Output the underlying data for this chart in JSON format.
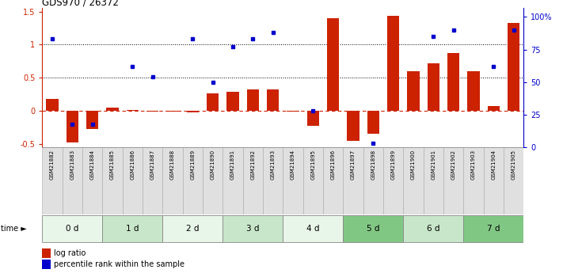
{
  "title": "GDS970 / 26372",
  "samples": [
    "GSM21882",
    "GSM21883",
    "GSM21884",
    "GSM21885",
    "GSM21886",
    "GSM21887",
    "GSM21888",
    "GSM21889",
    "GSM21890",
    "GSM21891",
    "GSM21892",
    "GSM21893",
    "GSM21894",
    "GSM21895",
    "GSM21896",
    "GSM21897",
    "GSM21898",
    "GSM21899",
    "GSM21900",
    "GSM21901",
    "GSM21902",
    "GSM21903",
    "GSM21904",
    "GSM21905"
  ],
  "log_ratio": [
    0.18,
    -0.48,
    -0.27,
    0.05,
    0.02,
    -0.01,
    -0.01,
    -0.02,
    0.26,
    0.29,
    0.32,
    0.32,
    -0.01,
    -0.22,
    1.4,
    -0.45,
    -0.34,
    1.44,
    0.6,
    0.72,
    0.87,
    0.6,
    0.08,
    1.33
  ],
  "percentile_rank": [
    83,
    18,
    18,
    null,
    62,
    54,
    null,
    83,
    50,
    77,
    83,
    88,
    null,
    28,
    null,
    null,
    3,
    null,
    null,
    85,
    90,
    null,
    62,
    90
  ],
  "time_groups": [
    {
      "label": "0 d",
      "start": 0,
      "end": 3,
      "color": "#e8f5e9"
    },
    {
      "label": "1 d",
      "start": 3,
      "end": 6,
      "color": "#c8e6c9"
    },
    {
      "label": "2 d",
      "start": 6,
      "end": 9,
      "color": "#e8f5e9"
    },
    {
      "label": "3 d",
      "start": 9,
      "end": 12,
      "color": "#c8e6c9"
    },
    {
      "label": "4 d",
      "start": 12,
      "end": 15,
      "color": "#e8f5e9"
    },
    {
      "label": "5 d",
      "start": 15,
      "end": 18,
      "color": "#81c784"
    },
    {
      "label": "6 d",
      "start": 18,
      "end": 21,
      "color": "#c8e6c9"
    },
    {
      "label": "7 d",
      "start": 21,
      "end": 24,
      "color": "#81c784"
    }
  ],
  "bar_color": "#cc2200",
  "dot_color": "#0000cc",
  "ylim_left": [
    -0.55,
    1.55
  ],
  "ylim_right": [
    0,
    106.67
  ],
  "yticks_left": [
    -0.5,
    0.0,
    0.5,
    1.0,
    1.5
  ],
  "ytick_labels_left": [
    "-0.5",
    "0",
    "0.5",
    "1",
    "1.5"
  ],
  "yticks_right": [
    0,
    25,
    50,
    75,
    100
  ],
  "ytick_labels_right": [
    "0",
    "25",
    "50",
    "75",
    "100%"
  ],
  "background_color": "#ffffff"
}
